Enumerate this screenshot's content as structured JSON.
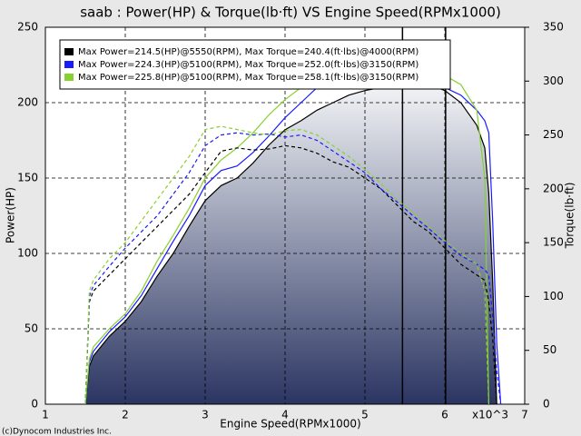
{
  "chart_data": {
    "type": "line",
    "title": "saab : Power(HP) & Torque(lb·ft) VS Engine Speed(RPMx1000)",
    "x_label": "Engine Speed(RPMx1000)",
    "y_label": "Power(HP)",
    "y2_label": "Torque(lb·ft)",
    "x_annotation": "x10^3",
    "footer": "(c)Dynocom Industries Inc.",
    "x": [
      1.5,
      1.55,
      1.6,
      1.8,
      2.0,
      2.2,
      2.4,
      2.6,
      2.8,
      3.0,
      3.2,
      3.4,
      3.6,
      3.8,
      4.0,
      4.2,
      4.4,
      4.6,
      4.8,
      5.0,
      5.2,
      5.4,
      5.6,
      5.8,
      6.0,
      6.2,
      6.4,
      6.5,
      6.55,
      6.6,
      6.65,
      6.7
    ],
    "xlim": [
      1,
      7
    ],
    "xticks": [
      1,
      2,
      3,
      4,
      5,
      6,
      7
    ],
    "ylim": [
      0,
      250
    ],
    "yticks": [
      0,
      50,
      100,
      150,
      200,
      250
    ],
    "y2lim": [
      0,
      350
    ],
    "y2ticks": [
      0,
      50,
      100,
      150,
      200,
      250,
      300,
      350
    ],
    "grid": true,
    "vlines": [
      5.47,
      6.01
    ],
    "series": [
      {
        "name": "Max Power=214.5(HP)@5550(RPM), Max Torque=240.4(ft·lbs)@4000(RPM)",
        "color": "#000000",
        "values": [
          0,
          25,
          32,
          45,
          55,
          68,
          85,
          100,
          118,
          135,
          145,
          150,
          160,
          172,
          182,
          188,
          195,
          200,
          205,
          208,
          210,
          212,
          214,
          212,
          208,
          200,
          185,
          170,
          140,
          80,
          0,
          null
        ]
      },
      {
        "name": "Max Power=224.3(HP)@5100(RPM), Max Torque=252.0(ft·lbs)@3150(RPM)",
        "color": "#1a1aff",
        "values": [
          0,
          28,
          35,
          48,
          58,
          72,
          90,
          108,
          125,
          145,
          155,
          158,
          167,
          178,
          190,
          200,
          210,
          218,
          222,
          223,
          224,
          223,
          220,
          215,
          210,
          205,
          195,
          188,
          180,
          120,
          40,
          0
        ]
      },
      {
        "name": "Max Power=225.8(HP)@5100(RPM), Max Torque=258.1(ft·lbs)@3150(RPM)",
        "color": "#88d030",
        "values": [
          0,
          30,
          38,
          50,
          60,
          75,
          95,
          112,
          130,
          150,
          162,
          170,
          180,
          192,
          202,
          210,
          215,
          218,
          222,
          224,
          225,
          225,
          224,
          222,
          218,
          212,
          195,
          150,
          0,
          null,
          null,
          null
        ]
      },
      {
        "color": "#000000",
        "axis": "y2",
        "dash": true,
        "values": [
          0,
          95,
          105,
          120,
          135,
          150,
          165,
          180,
          195,
          215,
          235,
          238,
          236,
          237,
          240,
          238,
          233,
          225,
          220,
          210,
          200,
          185,
          170,
          160,
          145,
          130,
          120,
          115,
          95,
          60,
          0,
          null
        ]
      },
      {
        "color": "#1a1aff",
        "axis": "y2",
        "dash": true,
        "values": [
          0,
          100,
          110,
          128,
          145,
          160,
          175,
          195,
          215,
          240,
          250,
          252,
          250,
          251,
          248,
          250,
          245,
          235,
          225,
          215,
          200,
          188,
          175,
          163,
          150,
          138,
          130,
          125,
          120,
          80,
          30,
          0
        ]
      },
      {
        "color": "#88d030",
        "axis": "y2",
        "dash": true,
        "values": [
          0,
          105,
          115,
          135,
          150,
          170,
          190,
          210,
          230,
          255,
          258,
          255,
          252,
          250,
          254,
          255,
          250,
          240,
          230,
          218,
          205,
          190,
          178,
          165,
          152,
          140,
          130,
          105,
          0,
          null,
          null,
          null
        ]
      }
    ]
  }
}
